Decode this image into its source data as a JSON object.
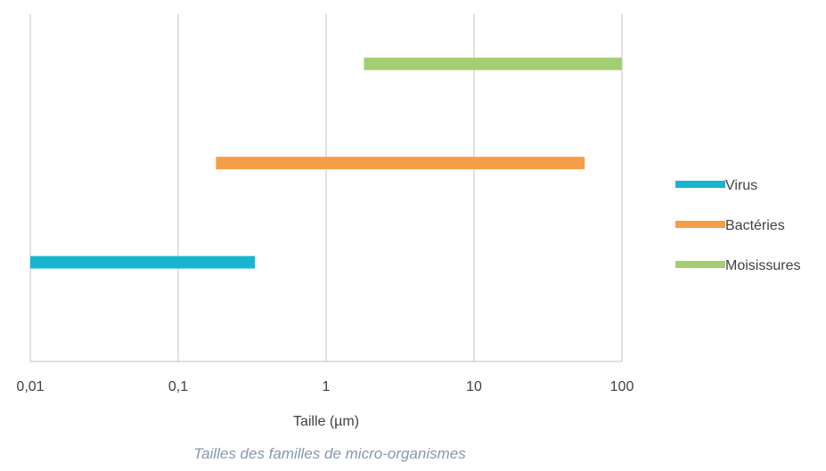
{
  "chart_data": {
    "type": "range-bar",
    "x_scale": "log",
    "xlim": [
      0.01,
      100
    ],
    "xticks": [
      0.01,
      0.1,
      1,
      10,
      100
    ],
    "xtick_labels": [
      "0,01",
      "0,1",
      "1",
      "10",
      "100"
    ],
    "xlabel": "Taille (µm)",
    "grid": true,
    "legend_position": "right",
    "series": [
      {
        "name": "Virus",
        "min": 0.01,
        "max": 0.33,
        "color": "#17b5cf"
      },
      {
        "name": "Bactéries",
        "min": 0.18,
        "max": 56,
        "color": "#f59d47"
      },
      {
        "name": "Moisissures",
        "min": 1.8,
        "max": 100,
        "color": "#a3cf72"
      }
    ]
  },
  "caption": "Tailles des familles de micro-organismes"
}
